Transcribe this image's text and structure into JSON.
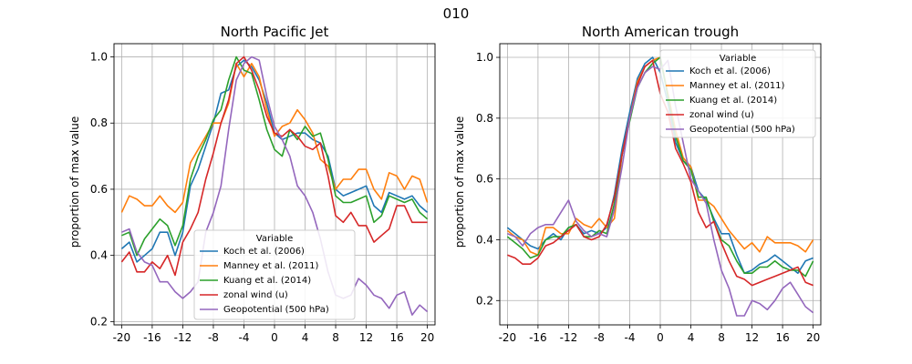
{
  "figure": {
    "suptitle": "010"
  },
  "chart_data": [
    {
      "type": "line",
      "title": "North Pacific Jet",
      "xlabel": "",
      "ylabel": "proportion of max value",
      "xlim": [
        -21,
        21
      ],
      "ylim": [
        0.19,
        1.04
      ],
      "xticks": [
        -20,
        -16,
        -12,
        -8,
        -4,
        0,
        4,
        8,
        12,
        16,
        20
      ],
      "xtick_labels": [
        "-20",
        "-16",
        "-12",
        "-8",
        "-4",
        "0",
        "4",
        "8",
        "12",
        "16",
        "20"
      ],
      "yticks": [
        0.2,
        0.4,
        0.6,
        0.8,
        1.0
      ],
      "ytick_labels": [
        "0.2",
        "0.4",
        "0.6",
        "0.8",
        "1.0"
      ],
      "grid": true,
      "legend_title": "Variable",
      "legend_placement": "lower-center",
      "x": [
        -20,
        -19,
        -18,
        -17,
        -16,
        -15,
        -14,
        -13,
        -12,
        -11,
        -10,
        -9,
        -8,
        -7,
        -6,
        -5,
        -4,
        -3,
        -2,
        -1,
        0,
        1,
        2,
        3,
        4,
        5,
        6,
        7,
        8,
        9,
        10,
        11,
        12,
        13,
        14,
        15,
        16,
        17,
        18,
        19,
        20
      ],
      "series": [
        {
          "name": "Koch et al. (2006)",
          "color": "#1f77b4",
          "values": [
            0.42,
            0.44,
            0.38,
            0.4,
            0.42,
            0.47,
            0.47,
            0.4,
            0.47,
            0.61,
            0.66,
            0.73,
            0.8,
            0.89,
            0.9,
            0.97,
            0.99,
            0.97,
            0.93,
            0.86,
            0.77,
            0.75,
            0.76,
            0.77,
            0.77,
            0.75,
            0.74,
            0.7,
            0.6,
            0.58,
            0.59,
            0.6,
            0.61,
            0.55,
            0.53,
            0.59,
            0.58,
            0.57,
            0.58,
            0.55,
            0.53
          ]
        },
        {
          "name": "Manney et al. (2011)",
          "color": "#ff7f0e",
          "values": [
            0.53,
            0.58,
            0.57,
            0.55,
            0.55,
            0.58,
            0.55,
            0.53,
            0.56,
            0.68,
            0.72,
            0.76,
            0.8,
            0.8,
            0.86,
            0.98,
            0.94,
            0.98,
            0.94,
            0.84,
            0.76,
            0.79,
            0.8,
            0.84,
            0.81,
            0.77,
            0.69,
            0.67,
            0.6,
            0.63,
            0.63,
            0.66,
            0.66,
            0.6,
            0.57,
            0.65,
            0.64,
            0.6,
            0.64,
            0.63,
            0.56
          ]
        },
        {
          "name": "Kuang et al. (2014)",
          "color": "#2ca02c",
          "values": [
            0.46,
            0.47,
            0.4,
            0.45,
            0.48,
            0.51,
            0.49,
            0.43,
            0.49,
            0.63,
            0.7,
            0.75,
            0.81,
            0.84,
            0.93,
            1.0,
            0.96,
            0.95,
            0.87,
            0.78,
            0.72,
            0.7,
            0.78,
            0.75,
            0.79,
            0.76,
            0.77,
            0.69,
            0.58,
            0.56,
            0.56,
            0.57,
            0.58,
            0.5,
            0.52,
            0.58,
            0.57,
            0.56,
            0.57,
            0.53,
            0.51
          ]
        },
        {
          "name": "zonal wind (u)",
          "color": "#d62728",
          "values": [
            0.38,
            0.41,
            0.35,
            0.35,
            0.38,
            0.36,
            0.4,
            0.34,
            0.44,
            0.48,
            0.53,
            0.63,
            0.71,
            0.8,
            0.87,
            0.98,
            1.0,
            0.96,
            0.9,
            0.82,
            0.77,
            0.76,
            0.78,
            0.76,
            0.73,
            0.72,
            0.74,
            0.64,
            0.52,
            0.5,
            0.53,
            0.49,
            0.49,
            0.44,
            0.46,
            0.48,
            0.55,
            0.55,
            0.5,
            0.5,
            0.5
          ]
        },
        {
          "name": "Geopotential (500 hPa)",
          "color": "#9467bd",
          "values": [
            0.47,
            0.48,
            0.41,
            0.38,
            0.37,
            0.32,
            0.32,
            0.29,
            0.27,
            0.29,
            0.32,
            0.47,
            0.53,
            0.61,
            0.78,
            0.93,
            0.98,
            1.0,
            0.99,
            0.88,
            0.79,
            0.75,
            0.7,
            0.61,
            0.58,
            0.53,
            0.45,
            0.35,
            0.28,
            0.27,
            0.28,
            0.33,
            0.31,
            0.28,
            0.27,
            0.24,
            0.28,
            0.29,
            0.22,
            0.25,
            0.23
          ]
        }
      ]
    },
    {
      "type": "line",
      "title": "North American trough",
      "xlabel": "",
      "ylabel": "proportion of max value",
      "xlim": [
        -21,
        21
      ],
      "ylim": [
        0.12,
        1.045
      ],
      "xticks": [
        -20,
        -16,
        -12,
        -8,
        -4,
        0,
        4,
        8,
        12,
        16,
        20
      ],
      "xtick_labels": [
        "-20",
        "-16",
        "-12",
        "-8",
        "-4",
        "0",
        "4",
        "8",
        "12",
        "16",
        "20"
      ],
      "yticks": [
        0.2,
        0.4,
        0.6,
        0.8,
        1.0
      ],
      "ytick_labels": [
        "0.2",
        "0.4",
        "0.6",
        "0.8",
        "1.0"
      ],
      "grid": true,
      "legend_title": "Variable",
      "legend_placement": "upper-right",
      "x": [
        -20,
        -19,
        -18,
        -17,
        -16,
        -15,
        -14,
        -13,
        -12,
        -11,
        -10,
        -9,
        -8,
        -7,
        -6,
        -5,
        -4,
        -3,
        -2,
        -1,
        0,
        1,
        2,
        3,
        4,
        5,
        6,
        7,
        8,
        9,
        10,
        11,
        12,
        13,
        14,
        15,
        16,
        17,
        18,
        19,
        20
      ],
      "series": [
        {
          "name": "Koch et al. (2006)",
          "color": "#1f77b4",
          "values": [
            0.44,
            0.42,
            0.4,
            0.38,
            0.37,
            0.4,
            0.42,
            0.4,
            0.44,
            0.45,
            0.42,
            0.43,
            0.42,
            0.44,
            0.55,
            0.7,
            0.82,
            0.93,
            0.98,
            1.0,
            0.95,
            0.85,
            0.72,
            0.66,
            0.64,
            0.56,
            0.53,
            0.47,
            0.42,
            0.42,
            0.35,
            0.29,
            0.3,
            0.32,
            0.33,
            0.35,
            0.33,
            0.31,
            0.29,
            0.33,
            0.34
          ]
        },
        {
          "name": "Manney et al. (2011)",
          "color": "#ff7f0e",
          "values": [
            0.43,
            0.41,
            0.4,
            0.36,
            0.35,
            0.44,
            0.44,
            0.42,
            0.42,
            0.47,
            0.45,
            0.44,
            0.47,
            0.44,
            0.47,
            0.68,
            0.8,
            0.92,
            0.97,
            0.99,
            1.0,
            0.88,
            0.76,
            0.67,
            0.64,
            0.53,
            0.53,
            0.51,
            0.47,
            0.43,
            0.4,
            0.37,
            0.39,
            0.36,
            0.41,
            0.39,
            0.39,
            0.39,
            0.38,
            0.36,
            0.4
          ]
        },
        {
          "name": "Kuang et al. (2014)",
          "color": "#2ca02c",
          "values": [
            0.41,
            0.39,
            0.37,
            0.34,
            0.35,
            0.4,
            0.41,
            0.41,
            0.44,
            0.45,
            0.41,
            0.41,
            0.43,
            0.42,
            0.52,
            0.68,
            0.79,
            0.9,
            0.95,
            0.98,
            1.0,
            0.87,
            0.74,
            0.66,
            0.63,
            0.54,
            0.54,
            0.46,
            0.4,
            0.38,
            0.33,
            0.29,
            0.29,
            0.31,
            0.31,
            0.33,
            0.31,
            0.3,
            0.3,
            0.28,
            0.33
          ]
        },
        {
          "name": "zonal wind (u)",
          "color": "#d62728",
          "values": [
            0.35,
            0.34,
            0.32,
            0.32,
            0.34,
            0.38,
            0.39,
            0.41,
            0.43,
            0.45,
            0.41,
            0.4,
            0.41,
            0.45,
            0.54,
            0.68,
            0.8,
            0.91,
            0.97,
            0.99,
            0.88,
            0.82,
            0.7,
            0.65,
            0.59,
            0.49,
            0.44,
            0.46,
            0.39,
            0.33,
            0.28,
            0.27,
            0.25,
            0.26,
            0.27,
            0.28,
            0.29,
            0.3,
            0.31,
            0.26,
            0.25
          ]
        },
        {
          "name": "Geopotential (500 hPa)",
          "color": "#9467bd",
          "values": [
            0.42,
            0.41,
            0.38,
            0.42,
            0.44,
            0.45,
            0.45,
            0.49,
            0.53,
            0.46,
            0.43,
            0.41,
            0.42,
            0.41,
            0.5,
            0.64,
            0.8,
            0.9,
            0.95,
            0.97,
            0.96,
            0.99,
            0.84,
            0.72,
            0.6,
            0.56,
            0.52,
            0.4,
            0.3,
            0.24,
            0.15,
            0.15,
            0.2,
            0.19,
            0.17,
            0.2,
            0.24,
            0.26,
            0.22,
            0.18,
            0.16
          ]
        }
      ]
    }
  ]
}
